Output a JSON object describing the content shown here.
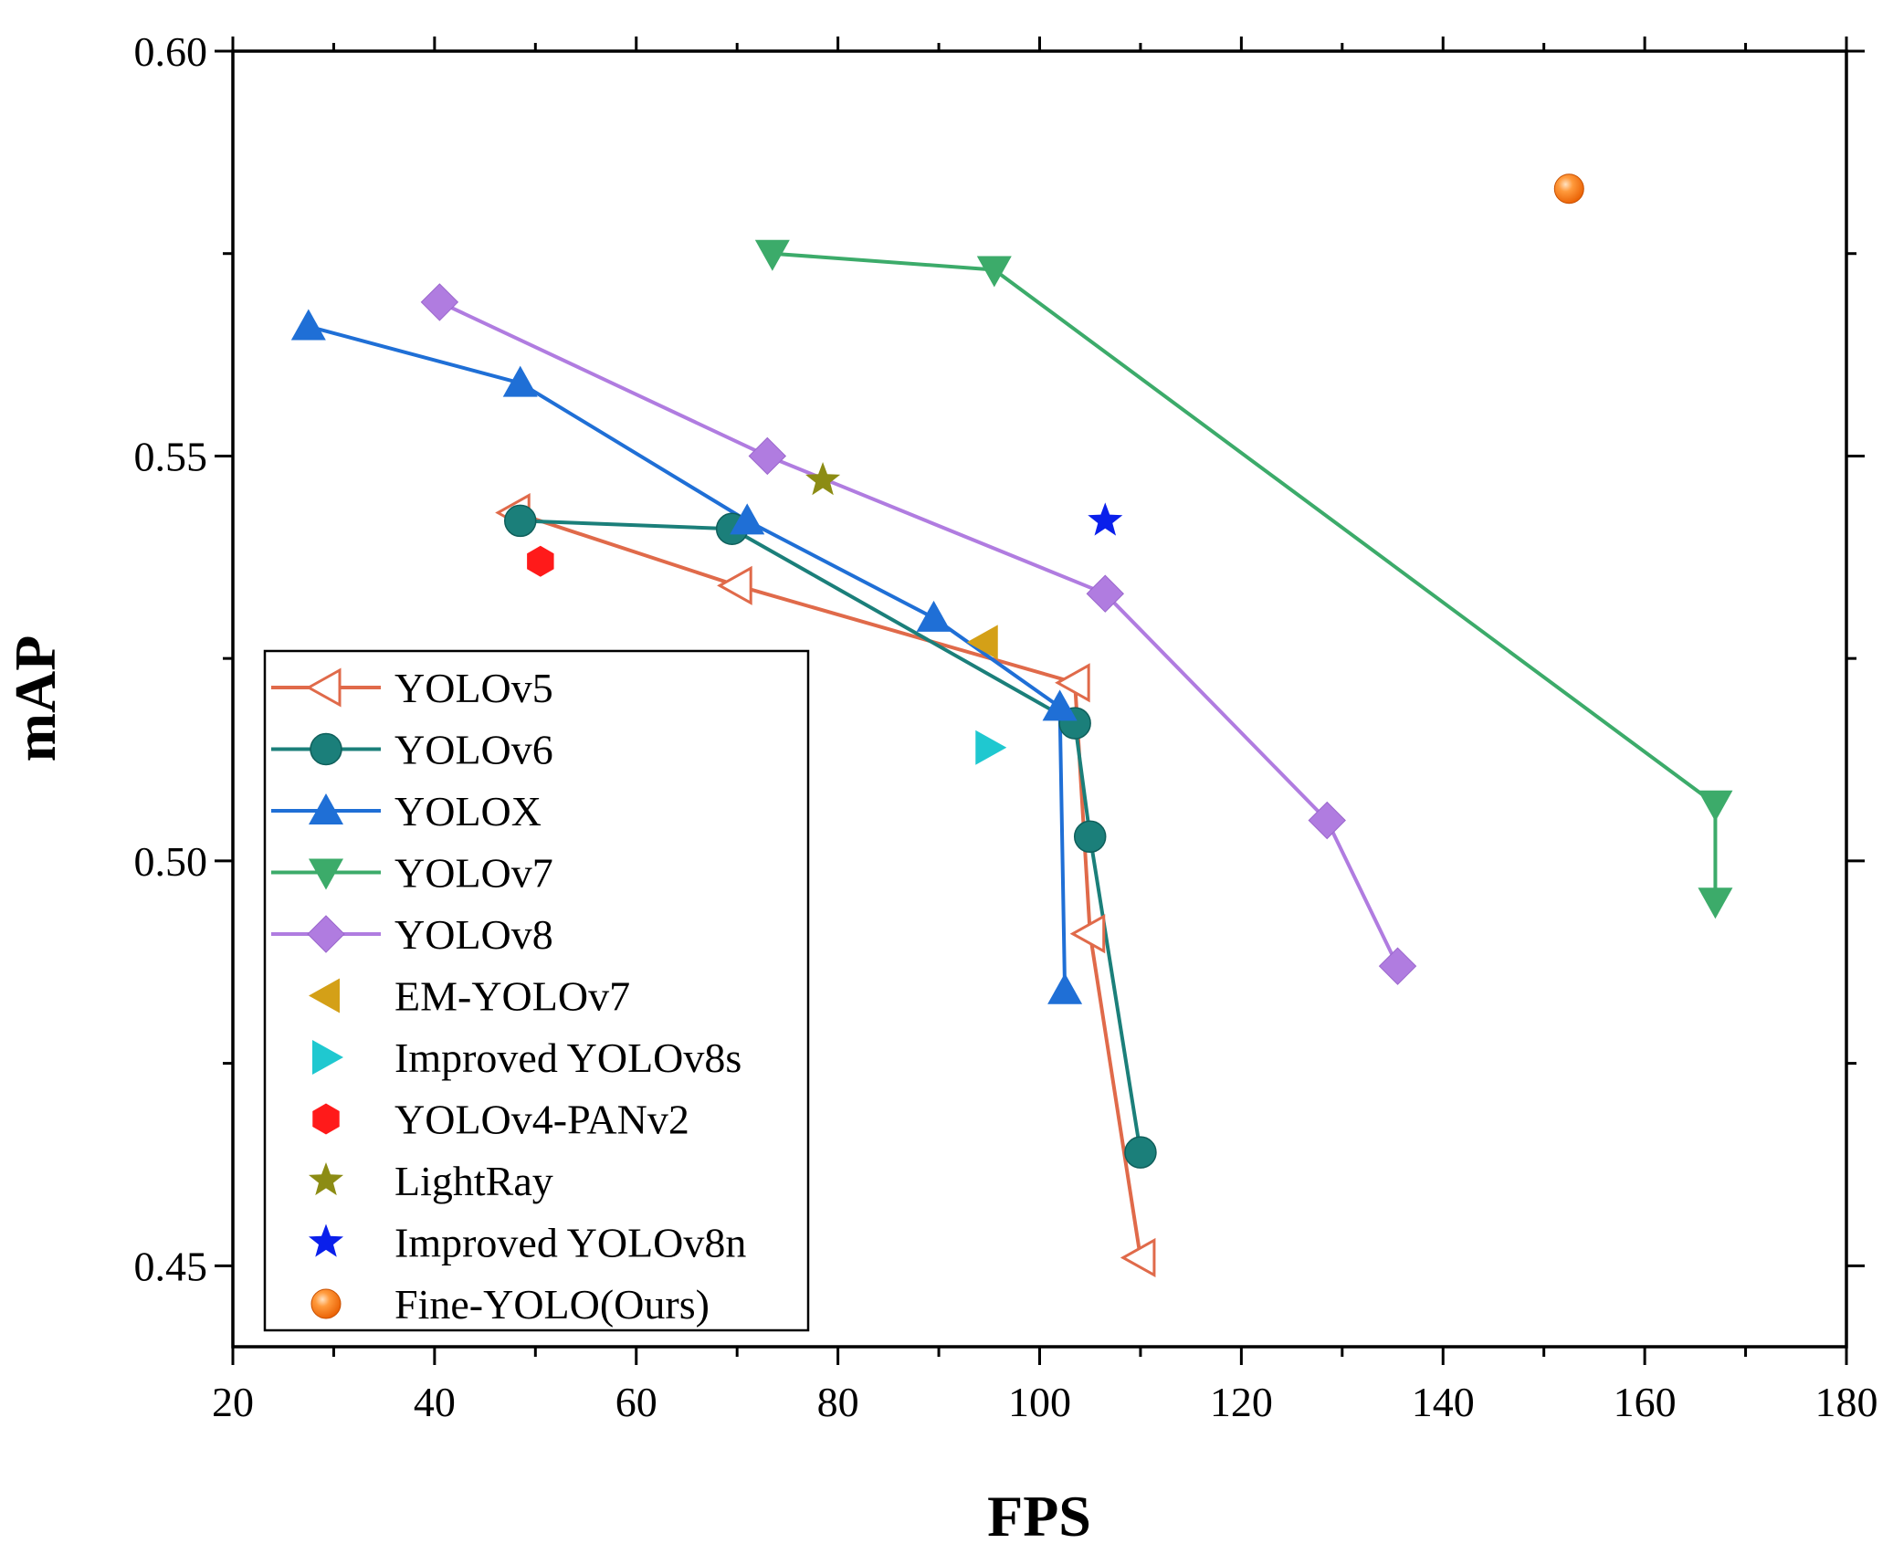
{
  "chart_data": {
    "type": "line",
    "title": "",
    "xlabel": "FPS",
    "ylabel": "mAP",
    "xlim": [
      20,
      180
    ],
    "ylim": [
      0.44,
      0.6
    ],
    "xticks": [
      20,
      40,
      60,
      80,
      100,
      120,
      140,
      160,
      180
    ],
    "xtick_labels": [
      "20",
      "40",
      "60",
      "80",
      "100",
      "120",
      "140",
      "160",
      "180"
    ],
    "yticks": [
      0.45,
      0.5,
      0.55,
      0.6
    ],
    "ytick_labels": [
      "0.45",
      "0.50",
      "0.55",
      "0.60"
    ],
    "grid": false,
    "legend_position": "bottom-left",
    "series": [
      {
        "name": "YOLOv5",
        "color": "#E06A4A",
        "marker": "tri-left-open",
        "line": true,
        "x": [
          48,
          70,
          103.5,
          105,
          110
        ],
        "y": [
          0.543,
          0.534,
          0.522,
          0.491,
          0.451
        ]
      },
      {
        "name": "YOLOv6",
        "color": "#1B7F7A",
        "marker": "circle",
        "line": true,
        "x": [
          48.5,
          69.5,
          103.5,
          105,
          110
        ],
        "y": [
          0.542,
          0.541,
          0.517,
          0.503,
          0.464
        ]
      },
      {
        "name": "YOLOX",
        "color": "#1F6FD6",
        "marker": "tri-up",
        "line": true,
        "x": [
          27.5,
          48.5,
          71,
          89.5,
          102,
          102.5
        ],
        "y": [
          0.566,
          0.559,
          0.542,
          0.53,
          0.519,
          0.484
        ]
      },
      {
        "name": "YOLOv7",
        "color": "#3CAB6A",
        "marker": "tri-down",
        "line": true,
        "x": [
          73.5,
          95.5,
          167,
          167
        ],
        "y": [
          0.575,
          0.573,
          0.507,
          0.495
        ]
      },
      {
        "name": "YOLOv8",
        "color": "#B07CE0",
        "marker": "diamond",
        "line": true,
        "x": [
          40.5,
          73,
          106.5,
          128.5,
          135.5
        ],
        "y": [
          0.569,
          0.55,
          0.533,
          0.505,
          0.487
        ]
      },
      {
        "name": "EM-YOLOv7",
        "color": "#D4A017",
        "marker": "tri-left",
        "line": false,
        "x": [
          94.5
        ],
        "y": [
          0.527
        ]
      },
      {
        "name": "Improved YOLOv8s",
        "color": "#1FC8D0",
        "marker": "tri-right",
        "line": false,
        "x": [
          95
        ],
        "y": [
          0.514
        ]
      },
      {
        "name": "YOLOv4-PANv2",
        "color": "#FF1A1A",
        "marker": "hexagon",
        "line": false,
        "x": [
          50.5
        ],
        "y": [
          0.537
        ]
      },
      {
        "name": "LightRay",
        "color": "#8C8C14",
        "marker": "star",
        "line": false,
        "x": [
          78.5
        ],
        "y": [
          0.547
        ]
      },
      {
        "name": "Improved YOLOv8n",
        "color": "#0A1FEB",
        "marker": "star",
        "line": false,
        "x": [
          106.5
        ],
        "y": [
          0.542
        ]
      },
      {
        "name": "Fine-YOLO(Ours)",
        "color": "#FF7F0E",
        "marker": "sphere",
        "line": false,
        "x": [
          152.5
        ],
        "y": [
          0.583
        ]
      }
    ]
  }
}
